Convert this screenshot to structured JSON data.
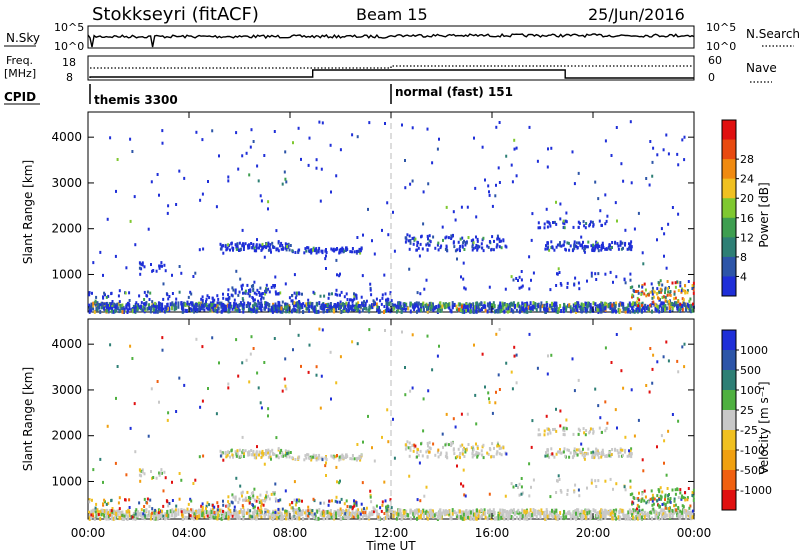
{
  "header": {
    "station": "Stokkseyri (fitACF)",
    "beam": "Beam 15",
    "date": "25/Jun/2016"
  },
  "noise_panel": {
    "left_label": "N.Sky",
    "right_label": "N.Search",
    "y_ticks_left": [
      "10^5",
      "10^0"
    ],
    "y_ticks_right": [
      "10^5",
      "10^0"
    ]
  },
  "freq_panel": {
    "left_label_1": "Freq.",
    "left_label_2": "[MHz]",
    "right_label": "Nave",
    "y_ticks_left": [
      "18",
      "8"
    ],
    "y_ticks_right": [
      "60",
      "0"
    ]
  },
  "cpid": {
    "label": "CPID",
    "modes": [
      {
        "name": "themis 3300",
        "start_hour": 0
      },
      {
        "name": "normal (fast) 151",
        "start_hour": 12
      }
    ]
  },
  "x_axis": {
    "label": "Time UT",
    "ticks": [
      "00:00",
      "04:00",
      "08:00",
      "12:00",
      "16:00",
      "20:00",
      "00:00"
    ],
    "range_hours": [
      0,
      24
    ]
  },
  "colors": {
    "power": [
      "#1f2fd8",
      "#2d55a8",
      "#2e7f75",
      "#3e9e50",
      "#7fc830",
      "#f0c020",
      "#f08a10",
      "#e84a10",
      "#e01010"
    ],
    "velocity": [
      "#1f2fd8",
      "#2d55a8",
      "#2e7f75",
      "#4fb040",
      "#c8c8c8",
      "#f0c020",
      "#f0a010",
      "#f06010",
      "#e01010"
    ]
  },
  "chart_data": [
    {
      "type": "heatmap",
      "title": "Power",
      "ylabel": "Slant Range [km]",
      "xlabel": "Time UT",
      "ylim": [
        180,
        4550
      ],
      "y_ticks": [
        1000,
        2000,
        3000,
        4000
      ],
      "x_ticks_hours": [
        0,
        4,
        8,
        12,
        16,
        20,
        24
      ],
      "colorbar_label": "Power [dB]",
      "colorbar_ticks": [
        "4",
        "8",
        "12",
        "16",
        "20",
        "24",
        "28"
      ],
      "colorbar_range": [
        0,
        30
      ]
    },
    {
      "type": "heatmap",
      "title": "Velocity",
      "ylabel": "Slant Range [km]",
      "xlabel": "Time UT",
      "ylim": [
        180,
        4550
      ],
      "y_ticks": [
        1000,
        2000,
        3000,
        4000
      ],
      "x_ticks_hours": [
        0,
        4,
        8,
        12,
        16,
        20,
        24
      ],
      "colorbar_label": "Velocity [m s⁻¹]",
      "colorbar_ticks": [
        "1000",
        "500",
        "100",
        "25",
        "-25",
        "-100",
        "-500",
        "-1000"
      ]
    }
  ]
}
